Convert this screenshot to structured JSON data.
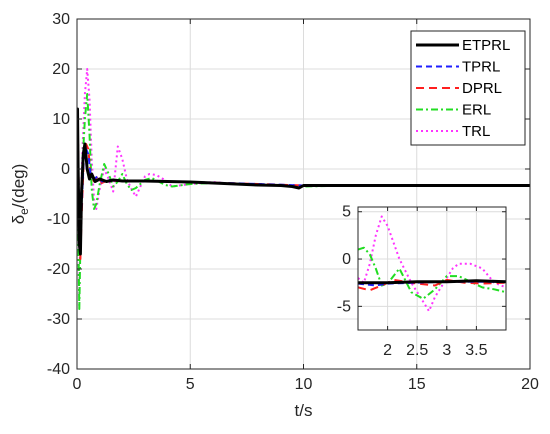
{
  "chart_data": [
    {
      "type": "line",
      "xlabel": "t/s",
      "ylabel_main": "δ",
      "ylabel_sub": "e",
      "ylabel_rest": "/(deg)",
      "xlim": [
        0,
        20
      ],
      "ylim": [
        -40,
        30
      ],
      "xticks": [
        0,
        5,
        10,
        15,
        20
      ],
      "yticks": [
        -40,
        -30,
        -20,
        -10,
        0,
        10,
        20,
        30
      ],
      "grid": true,
      "legend_position": "top-right",
      "series": [
        {
          "name": "ETPRL",
          "color": "#000000",
          "dash": "",
          "width": 3,
          "x": [
            0,
            0.02,
            0.05,
            0.1,
            0.15,
            0.2,
            0.28,
            0.35,
            0.45,
            0.55,
            0.65,
            0.8,
            1.0,
            1.3,
            1.6,
            2,
            3,
            4,
            5,
            6,
            7,
            8,
            9,
            9.5,
            9.8,
            10,
            10.5,
            12,
            15,
            18,
            20
          ],
          "y": [
            -4,
            12,
            0,
            -15,
            -17,
            -5,
            3,
            5,
            0,
            -2,
            -1,
            -2.5,
            -2,
            -2.5,
            -2.2,
            -2.4,
            -2.4,
            -2.5,
            -2.6,
            -2.8,
            -3,
            -3.2,
            -3.3,
            -3.5,
            -3.8,
            -3.3,
            -3.3,
            -3.3,
            -3.3,
            -3.3,
            -3.3
          ]
        },
        {
          "name": "TPRL",
          "color": "#1f1fff",
          "dash": "6,4",
          "width": 2,
          "x": [
            0,
            0.05,
            0.1,
            0.15,
            0.2,
            0.3,
            0.4,
            0.5,
            0.6,
            0.75,
            0.9,
            1.1,
            1.4,
            2,
            3,
            5,
            8,
            10,
            15,
            20
          ],
          "y": [
            -4,
            3,
            -10,
            -14,
            -8,
            2,
            4,
            3,
            -1,
            -2,
            -1.5,
            -2.5,
            -2.2,
            -2.4,
            -2.4,
            -2.6,
            -3,
            -3.3,
            -3.3,
            -3.3
          ]
        },
        {
          "name": "DPRL",
          "color": "#ff1f1f",
          "dash": "8,5",
          "width": 2,
          "x": [
            0,
            0.05,
            0.1,
            0.15,
            0.2,
            0.3,
            0.4,
            0.5,
            0.6,
            0.75,
            0.9,
            1.1,
            1.4,
            2,
            3,
            5,
            8,
            10,
            15,
            20
          ],
          "y": [
            -4,
            5,
            -12,
            -18,
            -10,
            2,
            5,
            4,
            -1,
            -2.5,
            -1.5,
            -2.8,
            -2.2,
            -2.5,
            -2.4,
            -2.6,
            -3,
            -3.3,
            -3.3,
            -3.3
          ]
        },
        {
          "name": "ERL",
          "color": "#22dd22",
          "dash": "7,3,2,3",
          "width": 2,
          "x": [
            0,
            0.05,
            0.1,
            0.15,
            0.25,
            0.35,
            0.45,
            0.55,
            0.65,
            0.75,
            0.85,
            1.0,
            1.2,
            1.4,
            1.6,
            1.8,
            2.0,
            2.2,
            2.4,
            2.6,
            2.8,
            3.0,
            3.3,
            3.6,
            3.9,
            4.2,
            5,
            6,
            7,
            8,
            9,
            10,
            12,
            15,
            18,
            20
          ],
          "y": [
            -4,
            -10,
            -28,
            -15,
            2,
            10,
            15,
            7,
            -4,
            -8,
            -7,
            -3,
            1,
            -1,
            -3.5,
            -2.5,
            -1,
            -3,
            -4.2,
            -3.8,
            -3,
            -2.2,
            -1.8,
            -2.5,
            -3.2,
            -3.5,
            -3,
            -2.8,
            -3,
            -3.2,
            -3.3,
            -3.5,
            -3.3,
            -3.3,
            -3.3,
            -3.3
          ]
        },
        {
          "name": "TRL",
          "color": "#ff33ff",
          "dash": "2,3",
          "width": 2,
          "x": [
            0,
            0.05,
            0.1,
            0.15,
            0.25,
            0.35,
            0.45,
            0.55,
            0.65,
            0.75,
            0.85,
            1.0,
            1.2,
            1.4,
            1.6,
            1.8,
            2.0,
            2.2,
            2.4,
            2.6,
            2.8,
            3.0,
            3.2,
            3.5,
            3.8,
            4.2,
            5,
            6,
            7,
            8,
            9,
            10,
            12,
            15,
            18,
            20
          ],
          "y": [
            -4,
            -12,
            -25,
            -10,
            5,
            15,
            20,
            14,
            2,
            -6,
            -8,
            -4,
            0,
            -2,
            -4.5,
            4.5,
            2,
            -2,
            -4,
            -5.5,
            -3.5,
            -1.5,
            -1,
            -1.2,
            -2,
            -3.5,
            -3,
            -2.6,
            -3,
            -3.2,
            -3.3,
            -3.4,
            -3.3,
            -3.3,
            -3.3,
            -3.3
          ]
        }
      ]
    },
    {
      "type": "line",
      "inset": true,
      "xlim": [
        1.5,
        4.0
      ],
      "ylim": [
        -7.5,
        5.5
      ],
      "xticks": [
        2,
        2.5,
        3,
        3.5
      ],
      "xtick_labels": [
        "2",
        "2.5",
        "3",
        "3.5"
      ],
      "yticks": [
        -5,
        0,
        5
      ],
      "grid": true,
      "series": [
        {
          "name": "ETPRL",
          "color": "#000000",
          "dash": "",
          "width": 3,
          "x": [
            1.5,
            2.0,
            2.5,
            3.0,
            3.5,
            4.0
          ],
          "y": [
            -2.5,
            -2.5,
            -2.4,
            -2.4,
            -2.3,
            -2.4
          ]
        },
        {
          "name": "TPRL",
          "color": "#1f1fff",
          "dash": "6,4",
          "width": 2,
          "x": [
            1.5,
            1.8,
            2.0,
            2.5,
            3.0,
            3.5,
            4.0
          ],
          "y": [
            -2.6,
            -2.8,
            -2.6,
            -2.5,
            -2.4,
            -2.4,
            -2.4
          ]
        },
        {
          "name": "DPRL",
          "color": "#ff1f1f",
          "dash": "8,5",
          "width": 2,
          "x": [
            1.5,
            1.7,
            1.9,
            2.1,
            2.5,
            2.8,
            3.0,
            3.3,
            3.6,
            4.0
          ],
          "y": [
            -3.0,
            -3.3,
            -2.8,
            -2.2,
            -2.6,
            -2.8,
            -2.2,
            -2.5,
            -2.6,
            -2.5
          ]
        },
        {
          "name": "ERL",
          "color": "#22dd22",
          "dash": "7,3,2,3",
          "width": 2,
          "x": [
            1.5,
            1.6,
            1.7,
            1.8,
            1.9,
            2.0,
            2.2,
            2.4,
            2.6,
            2.8,
            3.0,
            3.2,
            3.4,
            3.6,
            3.8,
            4.0
          ],
          "y": [
            1,
            1.2,
            0.5,
            -1,
            -2.8,
            -2.6,
            -1.0,
            -3.5,
            -4.2,
            -3.2,
            -1.8,
            -1.8,
            -2.4,
            -3.0,
            -3.2,
            -3.5
          ]
        },
        {
          "name": "TRL",
          "color": "#ff33ff",
          "dash": "2,3",
          "width": 2,
          "x": [
            1.5,
            1.6,
            1.7,
            1.8,
            1.9,
            2.0,
            2.2,
            2.4,
            2.5,
            2.6,
            2.7,
            2.8,
            3.0,
            3.1,
            3.2,
            3.4,
            3.6,
            3.8,
            4.0
          ],
          "y": [
            -2.0,
            -2.5,
            -0.5,
            2.5,
            4.5,
            3.5,
            0,
            -2.5,
            -3.5,
            -4.5,
            -5.5,
            -4.0,
            -2.0,
            -1.0,
            -0.5,
            -0.5,
            -1.0,
            -2.5,
            -3.0
          ]
        }
      ]
    }
  ]
}
